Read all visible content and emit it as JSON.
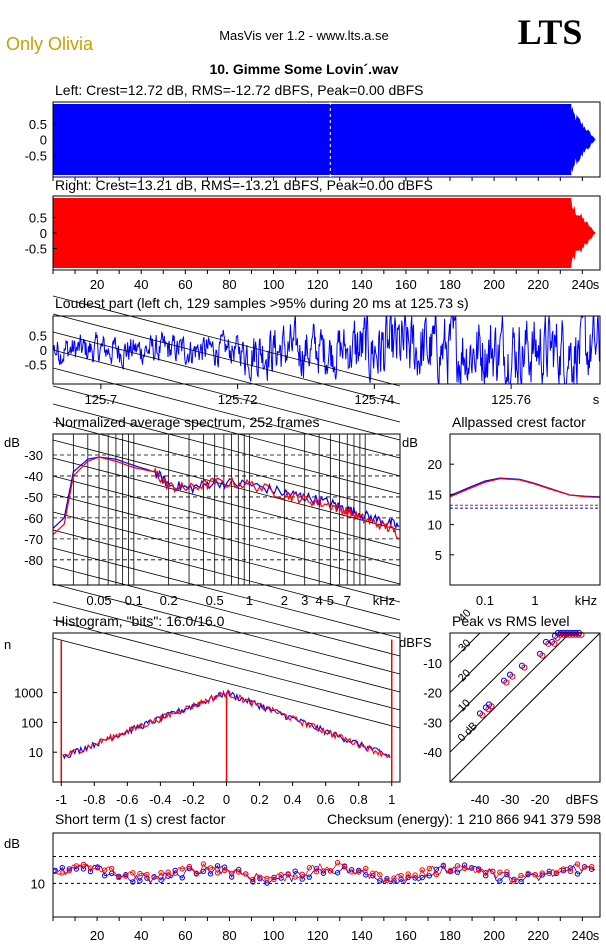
{
  "header": {
    "album": "Only Olivia",
    "app": "MasVis ver 1.2 - www.lts.a.se",
    "logo": "LTS",
    "track": "10. Gimme Some Lovin´.wav"
  },
  "colors": {
    "left": "#0000ff",
    "right": "#ff0000",
    "album": "#c8a000"
  },
  "chart_data": [
    {
      "id": "left",
      "type": "area",
      "title": "Left: Crest=12.72 dB, RMS=-12.72 dBFS, Peak=0.00 dBFS",
      "crest_db": 12.72,
      "rms_dbfs": -12.72,
      "peak_dbfs": 0.0,
      "ylim": [
        -1,
        1
      ],
      "yticks": [
        "0.5",
        "0",
        "-0.5"
      ],
      "xlim": [
        0,
        248
      ],
      "marker_s": 125.73
    },
    {
      "id": "right",
      "type": "area",
      "title": "Right: Crest=13.21 dB, RMS=-13.21 dBFS, Peak=0.00 dBFS",
      "crest_db": 13.21,
      "rms_dbfs": -13.21,
      "peak_dbfs": 0.0,
      "ylim": [
        -1,
        1
      ],
      "yticks": [
        "0.5",
        "0",
        "-0.5"
      ],
      "xlim": [
        0,
        248
      ],
      "xticks": [
        "20",
        "40",
        "60",
        "80",
        "100",
        "120",
        "140",
        "160",
        "180",
        "200",
        "220",
        "240"
      ],
      "xunit": "s"
    },
    {
      "id": "loudest",
      "type": "line",
      "title": "Loudest part (left  ch, 129 samples >95% during 20 ms at 125.73 s)",
      "xlim": [
        125.693,
        125.773
      ],
      "ylim": [
        -1,
        1
      ],
      "yticks": [
        "0.5",
        "0",
        "-0.5"
      ],
      "xticks": [
        "125.7",
        "125.72",
        "125.74",
        "125.76"
      ],
      "xunit": "s"
    },
    {
      "id": "spectrum",
      "type": "line",
      "title": "Normalized average spectrum, 252 frames",
      "ylabel": "dB",
      "yticks": [
        "-30",
        "-40",
        "-50",
        "-60",
        "-70",
        "-80"
      ],
      "ylim": [
        -92,
        -20
      ],
      "xticks": [
        "0.05",
        "0.1",
        "0.2",
        "0.5",
        "1",
        "2",
        "3",
        "4",
        "5",
        "7"
      ],
      "xunit": "kHz",
      "xlim": [
        0.02,
        20
      ],
      "series": [
        {
          "color": "blue",
          "x": [
            0.02,
            0.025,
            0.03,
            0.04,
            0.05,
            0.07,
            0.1,
            0.15,
            0.2,
            0.3,
            0.5,
            1,
            2,
            3,
            5,
            7,
            10,
            15,
            20
          ],
          "y": [
            -65,
            -60,
            -38,
            -32,
            -31,
            -32,
            -35,
            -38,
            -44,
            -46,
            -43,
            -44,
            -48,
            -50,
            -53,
            -56,
            -59,
            -62,
            -64
          ]
        },
        {
          "color": "red",
          "x": [
            0.02,
            0.025,
            0.03,
            0.04,
            0.05,
            0.07,
            0.1,
            0.15,
            0.2,
            0.3,
            0.5,
            1,
            2,
            3,
            5,
            7,
            10,
            15,
            20
          ],
          "y": [
            -68,
            -63,
            -40,
            -33,
            -31,
            -33,
            -36,
            -38,
            -45,
            -46,
            -43,
            -44,
            -49,
            -51,
            -54,
            -57,
            -61,
            -64,
            -68
          ]
        }
      ]
    },
    {
      "id": "allpass",
      "type": "line",
      "title": "Allpassed crest factor",
      "ylabel": "dB",
      "yticks": [
        "20",
        "15",
        "10",
        "5"
      ],
      "ylim": [
        0,
        25
      ],
      "xticks": [
        "0.1",
        "1",
        "kHz"
      ],
      "xlim": [
        0.02,
        20
      ],
      "series": [
        {
          "color": "blue",
          "x": [
            0.02,
            0.05,
            0.1,
            0.2,
            0.5,
            1,
            2,
            5,
            10,
            20
          ],
          "y": [
            14.8,
            16.2,
            17.2,
            17.7,
            17.5,
            16.8,
            16.0,
            14.9,
            14.7,
            14.6
          ]
        },
        {
          "color": "red",
          "x": [
            0.02,
            0.05,
            0.1,
            0.2,
            0.5,
            1,
            2,
            5,
            10,
            20
          ],
          "y": [
            14.6,
            16.0,
            17.0,
            17.6,
            17.4,
            16.7,
            15.9,
            14.9,
            14.6,
            14.5
          ]
        }
      ],
      "ref_left": 12.72,
      "ref_right": 13.21
    },
    {
      "id": "histogram",
      "type": "line",
      "title": "Histogram, \"bits\": 16.0/16.0",
      "ylabel": "n",
      "yticks": [
        "1000",
        "100",
        "10"
      ],
      "ylim_log": [
        1,
        100000
      ],
      "xticks": [
        "-1",
        "-0.8",
        "-0.6",
        "-0.4",
        "-0.2",
        "0",
        "0.2",
        "0.4",
        "0.6",
        "0.8",
        "1"
      ],
      "xlim": [
        -1.05,
        1.05
      ],
      "center_peak": 1000,
      "edge_peak": 60000,
      "edge_level": 7
    },
    {
      "id": "peakrms",
      "type": "scatter",
      "title": "Peak vs RMS level",
      "ylabel": "dBFS",
      "yticks": [
        "-10",
        "-20",
        "-30",
        "-40"
      ],
      "ylim": [
        -50,
        0
      ],
      "xticks": [
        "-40",
        "-30",
        "-20",
        "dBFS"
      ],
      "xlim": [
        -50,
        0
      ],
      "diag_labels": [
        "40",
        "30",
        "20",
        "10",
        "0 dB"
      ],
      "points": [
        [
          -40,
          -27
        ],
        [
          -38,
          -25
        ],
        [
          -37,
          -24
        ],
        [
          -32,
          -16
        ],
        [
          -30,
          -14
        ],
        [
          -26,
          -11
        ],
        [
          -20,
          -7
        ],
        [
          -18,
          -3
        ],
        [
          -16,
          -3
        ],
        [
          -15,
          -1
        ],
        [
          -14,
          0
        ],
        [
          -13,
          0
        ],
        [
          -12,
          0
        ],
        [
          -11,
          0
        ],
        [
          -10,
          0
        ],
        [
          -9,
          0
        ],
        [
          -8,
          0
        ],
        [
          -7,
          0
        ]
      ]
    },
    {
      "id": "shortcrest",
      "type": "scatter",
      "title": "Short term (1 s) crest factor",
      "checksum": "Checksum (energy):  1 210 866 941 379 598",
      "ylabel": "dB",
      "yticks": [
        "10"
      ],
      "ylim": [
        0,
        25
      ],
      "xticks": [
        "20",
        "40",
        "60",
        "80",
        "100",
        "120",
        "140",
        "160",
        "180",
        "200",
        "220",
        "240"
      ],
      "xunit": "s",
      "xlim": [
        0,
        248
      ],
      "ref_left": 12.72,
      "ref_right": 13.21
    }
  ]
}
